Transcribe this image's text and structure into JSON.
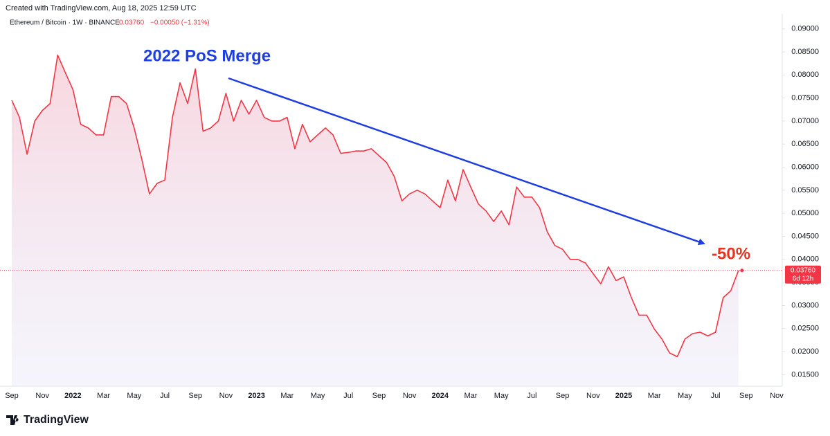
{
  "header": {
    "created": "Created with TradingView.com, Aug 18, 2025 12:59 UTC",
    "symbol": "Ethereum / Bitcoin · 1W · BINANCE",
    "price": "0.03760",
    "change": "−0.00050 (−1.31%)"
  },
  "footer": {
    "logo": "TradingView"
  },
  "chart_data": {
    "type": "line",
    "color": "#f23645",
    "grid": false,
    "annotations": [
      "2022 PoS Merge",
      "-50%"
    ],
    "last_price": {
      "value": 0.0376,
      "label": "0.03760"
    },
    "countdown": "6d 12h",
    "categories": [
      "Sep",
      null,
      null,
      null,
      "Nov",
      null,
      null,
      null,
      "2022",
      null,
      null,
      null,
      "Mar",
      null,
      null,
      null,
      "May",
      null,
      null,
      null,
      "Jul",
      null,
      null,
      null,
      "Sep",
      null,
      null,
      null,
      "Nov",
      null,
      null,
      null,
      "2023",
      null,
      null,
      null,
      "Mar",
      null,
      null,
      null,
      "May",
      null,
      null,
      null,
      "Jul",
      null,
      null,
      null,
      "Sep",
      null,
      null,
      null,
      "Nov",
      null,
      null,
      null,
      "2024",
      null,
      null,
      null,
      "Mar",
      null,
      null,
      null,
      "May",
      null,
      null,
      null,
      "Jul",
      null,
      null,
      null,
      "Sep",
      null,
      null,
      null,
      "Nov",
      null,
      null,
      null,
      "2025",
      null,
      null,
      null,
      "Mar",
      null,
      null,
      null,
      "May",
      null,
      null,
      null,
      "Jul",
      null,
      null,
      null,
      "Sep",
      null,
      null,
      null,
      "Nov"
    ],
    "values": [
      0.0745,
      0.0708,
      0.0628,
      0.07,
      0.0723,
      0.0738,
      0.0843,
      0.0805,
      0.0768,
      0.0693,
      0.0685,
      0.067,
      0.067,
      0.0753,
      0.0753,
      0.0738,
      0.0685,
      0.0617,
      0.0542,
      0.0565,
      0.0572,
      0.0708,
      0.0783,
      0.0738,
      0.0813,
      0.0678,
      0.0685,
      0.07,
      0.076,
      0.07,
      0.0745,
      0.0715,
      0.0745,
      0.0708,
      0.07,
      0.07,
      0.0708,
      0.064,
      0.0693,
      0.0655,
      0.067,
      0.0685,
      0.067,
      0.063,
      0.0632,
      0.0635,
      0.0635,
      0.064,
      0.0625,
      0.061,
      0.058,
      0.0527,
      0.0542,
      0.055,
      0.0542,
      0.0527,
      0.0512,
      0.0572,
      0.0527,
      0.0595,
      0.0557,
      0.052,
      0.0505,
      0.0482,
      0.0505,
      0.0475,
      0.0557,
      0.0535,
      0.0535,
      0.0512,
      0.046,
      0.043,
      0.0422,
      0.04,
      0.04,
      0.0392,
      0.0369,
      0.0347,
      0.0384,
      0.0354,
      0.0362,
      0.0317,
      0.0279,
      0.0279,
      0.0249,
      0.0227,
      0.0197,
      0.0189,
      0.0227,
      0.0239,
      0.0242,
      0.0234,
      0.0242,
      0.0317,
      0.0332,
      0.0376,
      null,
      null,
      null,
      null,
      null
    ],
    "ylim": [
      0.0125,
      0.0925
    ],
    "yticks": [
      {
        "value": 0.015,
        "label": "0.01500"
      },
      {
        "value": 0.02,
        "label": "0.02000"
      },
      {
        "value": 0.025,
        "label": "0.02500"
      },
      {
        "value": 0.03,
        "label": "0.03000"
      },
      {
        "value": 0.035,
        "label": "0.03500"
      },
      {
        "value": 0.04,
        "label": "0.04000"
      },
      {
        "value": 0.045,
        "label": "0.04500"
      },
      {
        "value": 0.05,
        "label": "0.05000"
      },
      {
        "value": 0.055,
        "label": "0.05500"
      },
      {
        "value": 0.06,
        "label": "0.06000"
      },
      {
        "value": 0.065,
        "label": "0.06500"
      },
      {
        "value": 0.07,
        "label": "0.07000"
      },
      {
        "value": 0.075,
        "label": "0.07500"
      },
      {
        "value": 0.08,
        "label": "0.08000"
      },
      {
        "value": 0.085,
        "label": "0.08500"
      },
      {
        "value": 0.09,
        "label": "0.09000"
      }
    ]
  }
}
